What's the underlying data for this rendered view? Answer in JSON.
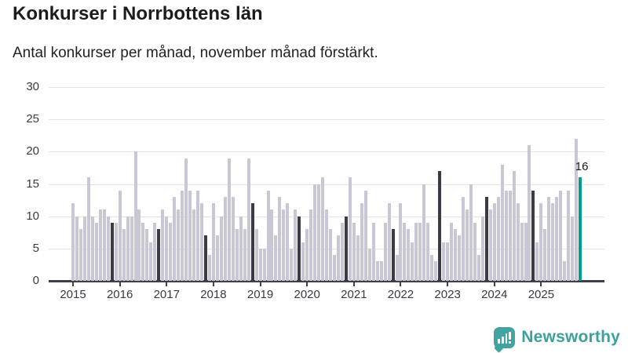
{
  "title": "Konkurser i Norrbottens län",
  "subtitle": "Antal konkurser per månad, november månad förstärkt.",
  "annotation": {
    "value": "16"
  },
  "logo": {
    "text": "Newsworthy",
    "icon": "bar-chart-speech-bubble-icon"
  },
  "colors": {
    "bar_default": "#c9c7d4",
    "bar_november": "#3b3b46",
    "bar_latest": "#009c94",
    "gridline": "#e4e3e8",
    "axis": "#3f3e49",
    "text": "#3a3944",
    "logo_teal": "#42a4a0"
  },
  "chart_data": {
    "type": "bar",
    "title": "Konkurser i Norrbottens län",
    "subtitle": "Antal konkurser per månad, november månad förstärkt.",
    "xlabel": "",
    "ylabel": "",
    "ylim": [
      0,
      30
    ],
    "y_ticks": [
      0,
      5,
      10,
      15,
      20,
      25,
      30
    ],
    "x_tick_labels": [
      "2015",
      "2016",
      "2017",
      "2018",
      "2019",
      "2020",
      "2021",
      "2022",
      "2023",
      "2024",
      "2025"
    ],
    "grid": "horizontal",
    "legend_position": "none",
    "period": "monthly, 2015-01 to 2025-11",
    "highlighted_month": "november",
    "latest_point": {
      "label": "nov 2025",
      "value": 16
    },
    "series": [
      {
        "year": 2015,
        "values": [
          12,
          10,
          8,
          10,
          16,
          10,
          9,
          11,
          11,
          10,
          9,
          9
        ]
      },
      {
        "year": 2016,
        "values": [
          14,
          8,
          10,
          10,
          20,
          11,
          9,
          8,
          6,
          9,
          8,
          11
        ]
      },
      {
        "year": 2017,
        "values": [
          10,
          9,
          13,
          11,
          14,
          19,
          14,
          11,
          14,
          12,
          7,
          4
        ]
      },
      {
        "year": 2018,
        "values": [
          12,
          7,
          10,
          13,
          19,
          13,
          8,
          10,
          8,
          19,
          12,
          8
        ]
      },
      {
        "year": 2019,
        "values": [
          5,
          5,
          14,
          11,
          7,
          13,
          11,
          12,
          5,
          11,
          10,
          6
        ]
      },
      {
        "year": 2020,
        "values": [
          8,
          11,
          15,
          15,
          16,
          11,
          8,
          4,
          7,
          9,
          10,
          16
        ]
      },
      {
        "year": 2021,
        "values": [
          9,
          7,
          12,
          14,
          5,
          9,
          3,
          3,
          9,
          12,
          8,
          4
        ]
      },
      {
        "year": 2022,
        "values": [
          12,
          9,
          8,
          6,
          9,
          9,
          15,
          9,
          4,
          3,
          17,
          6
        ]
      },
      {
        "year": 2023,
        "values": [
          6,
          9,
          8,
          7,
          13,
          11,
          15,
          9,
          4,
          10,
          13,
          11
        ]
      },
      {
        "year": 2024,
        "values": [
          12,
          13,
          18,
          14,
          14,
          17,
          12,
          9,
          9,
          21,
          14,
          6
        ]
      },
      {
        "year": 2025,
        "values": [
          12,
          8,
          13,
          12,
          13,
          14,
          3,
          14,
          10,
          22,
          16
        ]
      }
    ]
  }
}
